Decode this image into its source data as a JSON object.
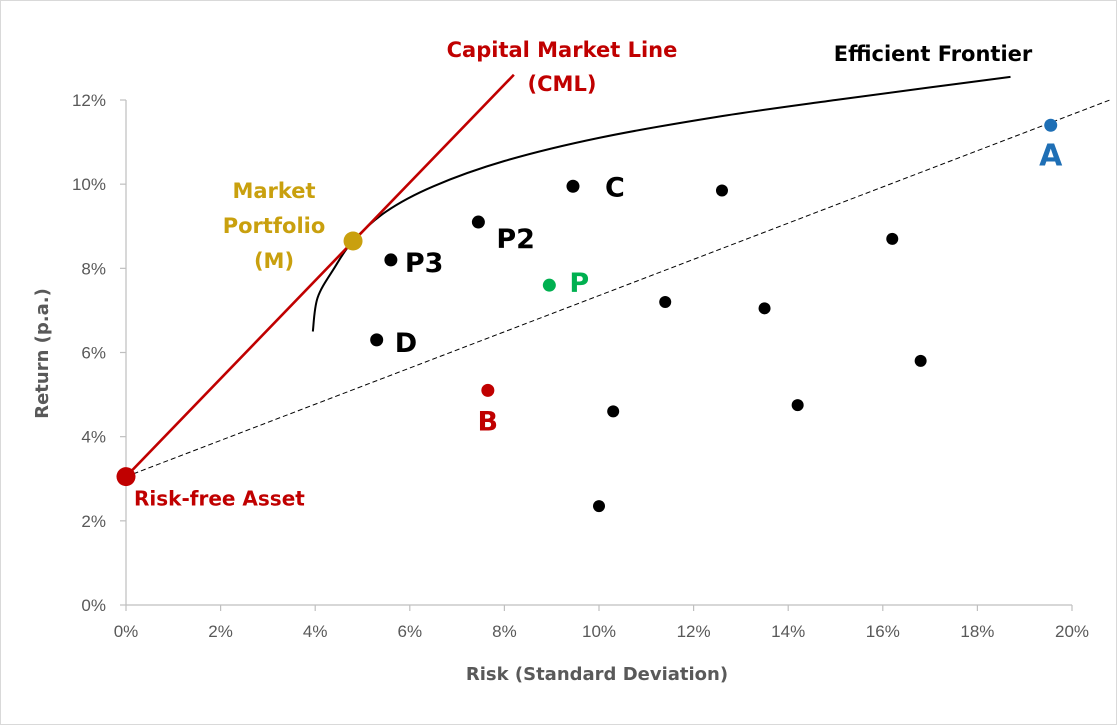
{
  "chart_data": {
    "type": "scatter",
    "xlabel": "Risk (Standard Deviation)",
    "ylabel": "Return (p.a.)",
    "xlim": [
      0,
      20
    ],
    "ylim": [
      0,
      12
    ],
    "x_ticks": [
      "0%",
      "2%",
      "4%",
      "6%",
      "8%",
      "10%",
      "12%",
      "14%",
      "16%",
      "18%",
      "20%"
    ],
    "y_ticks": [
      "0%",
      "2%",
      "4%",
      "6%",
      "8%",
      "10%",
      "12%"
    ],
    "grid": false,
    "colors": {
      "points": "#000000",
      "cml": "#c00000",
      "market": "#c9a00e",
      "asset_a": "#1f6fb5",
      "asset_b": "#c00000",
      "portfolio_p": "#00b050",
      "axis_text": "#595959"
    },
    "unlabeled_points": [
      {
        "x": 10.0,
        "y": 2.35
      },
      {
        "x": 10.3,
        "y": 4.6
      },
      {
        "x": 11.4,
        "y": 7.2
      },
      {
        "x": 12.6,
        "y": 9.85
      },
      {
        "x": 13.5,
        "y": 7.05
      },
      {
        "x": 14.2,
        "y": 4.75
      },
      {
        "x": 16.2,
        "y": 8.7
      },
      {
        "x": 16.8,
        "y": 5.8
      }
    ],
    "labeled_points": [
      {
        "label": "C",
        "x": 9.45,
        "y": 9.95,
        "color": "#000000"
      },
      {
        "label": "P2",
        "x": 7.45,
        "y": 9.1,
        "color": "#000000"
      },
      {
        "label": "P3",
        "x": 5.6,
        "y": 8.2,
        "color": "#000000"
      },
      {
        "label": "D",
        "x": 5.3,
        "y": 6.3,
        "color": "#000000"
      },
      {
        "label": "P",
        "x": 8.95,
        "y": 7.6,
        "color": "#00b050"
      },
      {
        "label": "B",
        "x": 7.65,
        "y": 5.1,
        "color": "#c00000"
      },
      {
        "label": "A",
        "x": 19.55,
        "y": 11.4,
        "color": "#1f6fb5"
      }
    ],
    "risk_free_asset": {
      "label": "Risk-free Asset",
      "x": 0,
      "y": 3.05
    },
    "market_portfolio": {
      "label_lines": [
        "Market",
        "Portfolio",
        "(M)"
      ],
      "x": 4.8,
      "y": 8.65
    },
    "cml": {
      "label_lines": [
        "Capital Market Line",
        "(CML)"
      ],
      "points": [
        {
          "x": 0,
          "y": 3.05
        },
        {
          "x": 8.2,
          "y": 12.6
        }
      ]
    },
    "efficient_frontier": {
      "label": "Efficient Frontier",
      "points": [
        {
          "x": 3.95,
          "y": 6.5
        },
        {
          "x": 4.05,
          "y": 7.3
        },
        {
          "x": 4.4,
          "y": 8.0
        },
        {
          "x": 4.8,
          "y": 8.65
        },
        {
          "x": 5.5,
          "y": 9.35
        },
        {
          "x": 6.5,
          "y": 9.95
        },
        {
          "x": 8.0,
          "y": 10.55
        },
        {
          "x": 10.0,
          "y": 11.1
        },
        {
          "x": 12.5,
          "y": 11.6
        },
        {
          "x": 15.0,
          "y": 12.0
        },
        {
          "x": 17.0,
          "y": 12.3
        },
        {
          "x": 18.7,
          "y": 12.55
        }
      ]
    },
    "dashed_line": {
      "points": [
        {
          "x": 0,
          "y": 3.05
        },
        {
          "x": 20.8,
          "y": 12.0
        }
      ]
    }
  }
}
